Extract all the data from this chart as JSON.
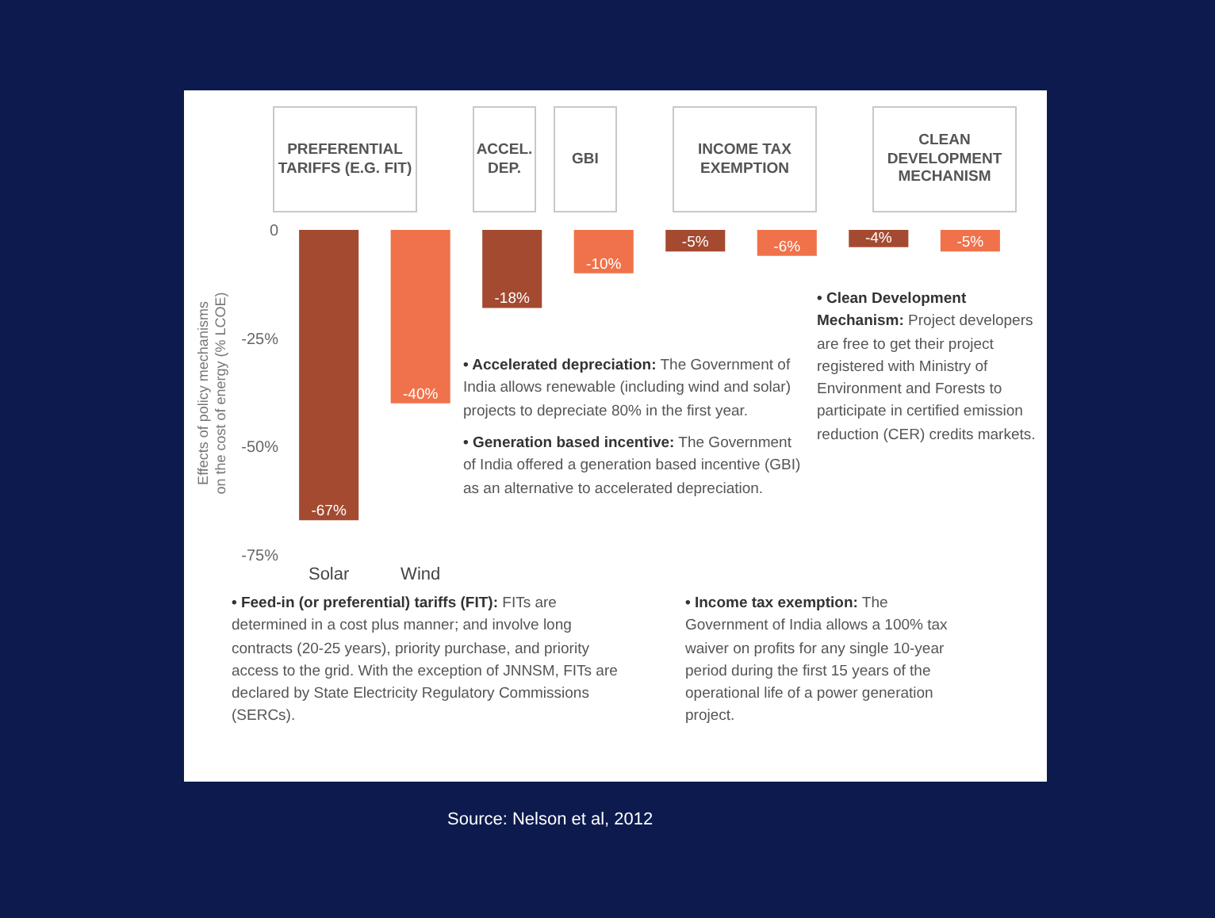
{
  "chart_data": {
    "type": "bar",
    "ylabel": "Effects of policy mechanisms on the cost of energy (% LCOE)",
    "categories": [
      "Solar",
      "Wind",
      null,
      null,
      null,
      null,
      null,
      null
    ],
    "values": [
      -67,
      -40,
      -18,
      -10,
      -5,
      -6,
      -4,
      -5
    ],
    "colors": [
      "#a34a30",
      "#f0724a",
      "#a34a30",
      "#f0724a",
      "#a34a30",
      "#f0724a",
      "#a34a30",
      "#f0724a"
    ],
    "value_labels": [
      "-67%",
      "-40%",
      "-18%",
      "-10%",
      "-5%",
      "-6%",
      "-4%",
      "-5%"
    ],
    "ylim": [
      -75,
      0
    ],
    "yticks": [
      0,
      {
        "value": -25,
        "label": "-25%"
      },
      {
        "value": -50,
        "label": "-50%"
      },
      {
        "value": -75,
        "label": "-75%"
      }
    ],
    "grid": false,
    "annotations": [
      "PREFERENTIAL TARIFFS (E.G. FIT)",
      "ACCEL. DEP.",
      "GBI",
      "INCOME TAX EXEMPTION",
      "CLEAN DEVELOPMENT MECHANISM",
      "• Accelerated depreciation: The Government of India allows renewable (including wind and solar) projects to depreciate 80% in the first year.",
      "• Generation based incentive: The Government of India offered a generation based incentive (GBI) as an alternative to accelerated depreciation.",
      "• Clean Development Mechanism: Project developers are free to get their project registered with Ministry of Environment and Forests to participate in certified emission reduction (CER) credits markets.",
      "• Feed-in (or preferential) tariffs (FIT): FITs are determined in a cost plus manner; and involve long contracts (20-25 years), priority purchase, and priority access to the grid. With the exception of JNNSM, FITs are declared by State Electricity Regulatory Commissions (SERCs).",
      "• Income tax exemption: The Government of India allows a 100% tax waiver on profits for any single 10-year period during the first 15 years of the operational life of a power generation project.",
      "Source: Nelson et al, 2012"
    ]
  }
}
